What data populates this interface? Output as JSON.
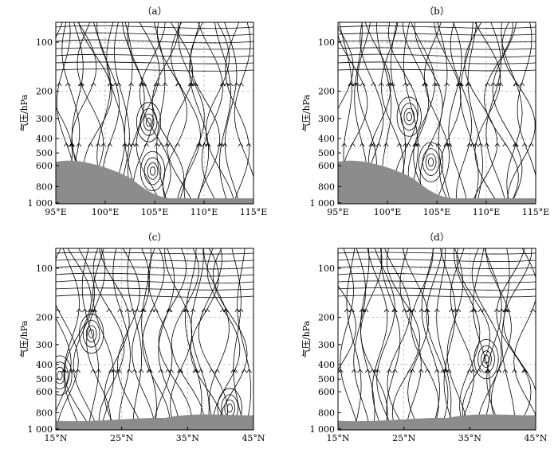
{
  "panels": [
    {
      "label": "（a）",
      "x_ticks": [
        "95°E",
        "100°E",
        "105°E",
        "110°E",
        "115°E"
      ],
      "y_label": "气压/hPa",
      "y_ticks": [
        "100",
        "200",
        "300",
        "400",
        "500",
        "600",
        "800",
        "1 000"
      ],
      "terrain": "sw",
      "vortices": [
        {
          "x": 0.47,
          "y": 0.55
        },
        {
          "x": 0.49,
          "y": 0.82
        }
      ]
    },
    {
      "label": "（b）",
      "x_ticks": [
        "95°E",
        "100°E",
        "105°E",
        "110°E",
        "115°E"
      ],
      "y_label": "气压/hPa",
      "y_ticks": [
        "100",
        "200",
        "300",
        "400",
        "500",
        "600",
        "800",
        "1 000"
      ],
      "terrain": "sw",
      "vortices": [
        {
          "x": 0.36,
          "y": 0.52
        },
        {
          "x": 0.47,
          "y": 0.77
        }
      ]
    },
    {
      "label": "（c）",
      "x_ticks": [
        "15°N",
        "25°N",
        "35°N",
        "45°N"
      ],
      "y_label": "气压/hPa",
      "y_ticks": [
        "100",
        "200",
        "300",
        "400",
        "500",
        "600",
        "800",
        "1 000"
      ],
      "terrain": "flat",
      "vortices": [
        {
          "x": 0.18,
          "y": 0.47
        },
        {
          "x": 0.02,
          "y": 0.7
        },
        {
          "x": 0.88,
          "y": 0.88
        }
      ]
    },
    {
      "label": "（d）",
      "x_ticks": [
        "15°N",
        "25°N",
        "35°N",
        "45°N"
      ],
      "y_label": "气压/hPa",
      "y_ticks": [
        "100",
        "200",
        "300",
        "400",
        "500",
        "600",
        "800",
        "1 000"
      ],
      "terrain": "flat",
      "vortices": [
        {
          "x": 0.75,
          "y": 0.61
        }
      ]
    }
  ],
  "colors": {
    "terrain": "#8c8c8c",
    "line": "#000000",
    "grid": "#9a9a9a"
  }
}
